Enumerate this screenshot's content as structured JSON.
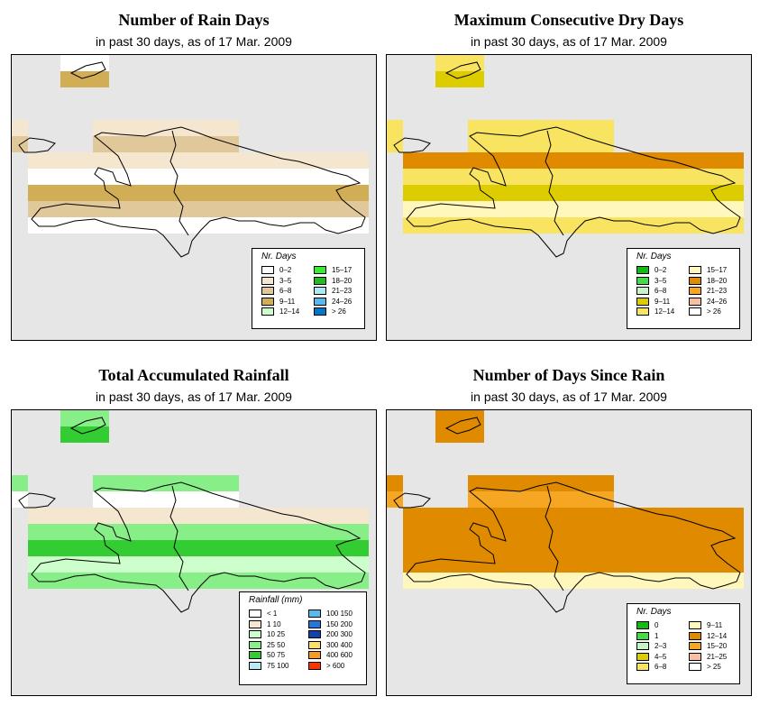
{
  "panels": [
    {
      "key": "rain_days",
      "title": "Number of Rain Days",
      "subtitle": "in past 30 days, as of  17 Mar. 2009",
      "legend_title": "Nr. Days",
      "legend": [
        {
          "label": "0–2",
          "color": "#ffffff"
        },
        {
          "label": "3–5",
          "color": "#f5e6cf"
        },
        {
          "label": "6–8",
          "color": "#e1c89a"
        },
        {
          "label": "9–11",
          "color": "#d1ad55"
        },
        {
          "label": "12–14",
          "color": "#ccffcc"
        },
        {
          "label": "15–17",
          "color": "#33ee33"
        },
        {
          "label": "18–20",
          "color": "#22bb22"
        },
        {
          "label": "21–23",
          "color": "#aee8f5"
        },
        {
          "label": "24–26",
          "color": "#55bbee"
        },
        {
          "label": "> 26",
          "color": "#0077cc"
        }
      ]
    },
    {
      "key": "dry_days",
      "title": "Maximum Consecutive Dry Days",
      "subtitle": "in past 30 days, as of  17 Mar. 2009",
      "legend_title": "Nr. Days",
      "legend": [
        {
          "label": "0–2",
          "color": "#11bb11"
        },
        {
          "label": "3–5",
          "color": "#44dd44"
        },
        {
          "label": "6–8",
          "color": "#c8f5c8"
        },
        {
          "label": "9–11",
          "color": "#ddcc00"
        },
        {
          "label": "12–14",
          "color": "#f8e460"
        },
        {
          "label": "15–17",
          "color": "#fff7bb"
        },
        {
          "label": "18–20",
          "color": "#e08a00"
        },
        {
          "label": "21–23",
          "color": "#f5a623"
        },
        {
          "label": "24–26",
          "color": "#f8c0a0"
        },
        {
          "label": "> 26",
          "color": "#ffffff"
        }
      ]
    },
    {
      "key": "rainfall",
      "title": "Total Accumulated Rainfall",
      "subtitle": "in past 30 days, as of  17 Mar. 2009",
      "legend_title": "Rainfall (mm)",
      "legend": [
        {
          "label": "< 1",
          "color": "#ffffff"
        },
        {
          "label": "1   10",
          "color": "#f5e6cf"
        },
        {
          "label": "10   25",
          "color": "#ccffcc"
        },
        {
          "label": "25   50",
          "color": "#88ee88"
        },
        {
          "label": "50   75",
          "color": "#33cc33"
        },
        {
          "label": "75  100",
          "color": "#b8ecf5"
        },
        {
          "label": "100  150",
          "color": "#55bbee"
        },
        {
          "label": "150  200",
          "color": "#2277dd"
        },
        {
          "label": "200  300",
          "color": "#1144aa"
        },
        {
          "label": "300  400",
          "color": "#ffe066"
        },
        {
          "label": "400  600",
          "color": "#f59a23"
        },
        {
          "label": "> 600",
          "color": "#ff3300"
        }
      ]
    },
    {
      "key": "since_rain",
      "title": "Number of Days Since Rain",
      "subtitle": "in past 30 days, as of  17 Mar. 2009",
      "legend_title": "Nr. Days",
      "legend": [
        {
          "label": "0",
          "color": "#11bb11"
        },
        {
          "label": "1",
          "color": "#44dd44"
        },
        {
          "label": "2–3",
          "color": "#c8f5c8"
        },
        {
          "label": "4–5",
          "color": "#ddcc00"
        },
        {
          "label": "6–8",
          "color": "#f8e460"
        },
        {
          "label": "9–11",
          "color": "#fff7bb"
        },
        {
          "label": "12–14",
          "color": "#e08a00"
        },
        {
          "label": "15–20",
          "color": "#f5a623"
        },
        {
          "label": "21–25",
          "color": "#f8c0a0"
        },
        {
          "label": "> 25",
          "color": "#ffffff"
        }
      ]
    }
  ]
}
